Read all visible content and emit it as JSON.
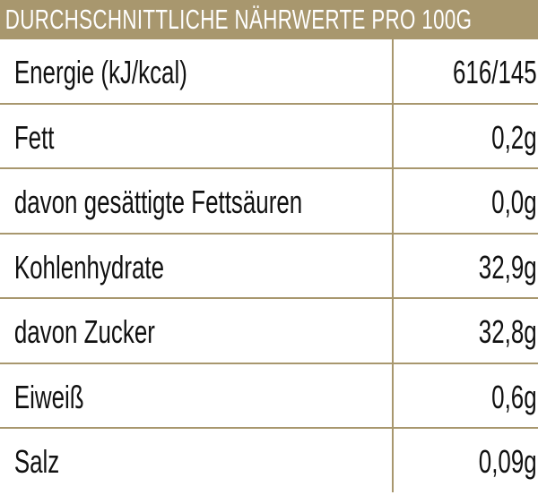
{
  "header": {
    "title": "DURCHSCHNITTLICHE NÄHRWERTE PRO 100G"
  },
  "colors": {
    "accent": "#a8976e"
  },
  "rows": [
    {
      "label": "Energie (kJ/kcal)",
      "value": "616/145"
    },
    {
      "label": "Fett",
      "value": "0,2g"
    },
    {
      "label": "davon gesättigte Fettsäuren",
      "value": "0,0g"
    },
    {
      "label": "Kohlenhydrate",
      "value": "32,9g"
    },
    {
      "label": "davon Zucker",
      "value": "32,8g"
    },
    {
      "label": "Eiweiß",
      "value": "0,6g"
    },
    {
      "label": "Salz",
      "value": "0,09g"
    }
  ]
}
